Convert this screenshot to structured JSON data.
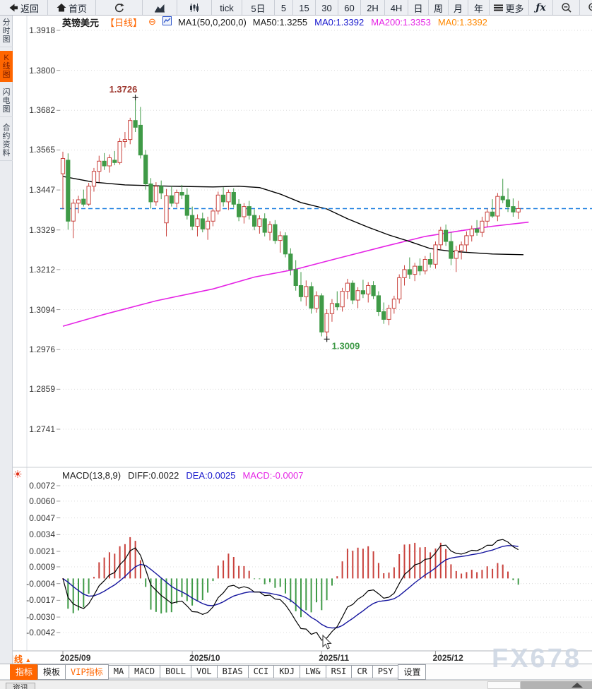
{
  "toolbar": {
    "items": [
      {
        "icon": "back-icon",
        "label": "返回"
      },
      {
        "icon": "home-icon",
        "label": "首页"
      },
      {
        "icon": "refresh-icon",
        "label": ""
      },
      {
        "icon": "area-chart-icon",
        "label": ""
      },
      {
        "icon": "candle-chart-icon",
        "label": ""
      },
      {
        "icon": "",
        "label": "tick"
      },
      {
        "icon": "",
        "label": "5日"
      },
      {
        "icon": "",
        "label": "5"
      },
      {
        "icon": "",
        "label": "15"
      },
      {
        "icon": "",
        "label": "30"
      },
      {
        "icon": "",
        "label": "60"
      },
      {
        "icon": "",
        "label": "2H"
      },
      {
        "icon": "",
        "label": "4H"
      },
      {
        "icon": "",
        "label": "日"
      },
      {
        "icon": "",
        "label": "周"
      },
      {
        "icon": "",
        "label": "月"
      },
      {
        "icon": "",
        "label": "年"
      },
      {
        "icon": "menu-icon",
        "label": "更多"
      },
      {
        "icon": "fx-icon",
        "label": ""
      },
      {
        "icon": "zoom-out-icon",
        "label": ""
      },
      {
        "icon": "zoom-in-icon",
        "label": ""
      }
    ]
  },
  "sidebar": {
    "tabs": [
      {
        "label": "分时图",
        "active": false
      },
      {
        "label": "K线图",
        "active": true
      },
      {
        "label": "闪电图",
        "active": false
      },
      {
        "label": "合约资料",
        "active": false
      }
    ]
  },
  "chart_header": {
    "symbol": "英镑美元",
    "period": "【日线】",
    "collapse_glyph": "⊖",
    "ma_settings": "MA1(50,0,200,0)",
    "ma_values": [
      {
        "text": "MA50:1.3255",
        "color": "#1b1b1b"
      },
      {
        "text": "MA0:1.3392",
        "color": "#1515cc"
      },
      {
        "text": "MA200:1.3353",
        "color": "#e524e5"
      },
      {
        "text": "MA0:1.3392",
        "color": "#ff8800"
      }
    ]
  },
  "macd_header": {
    "params": "MACD(13,8,9)",
    "values": [
      {
        "text": "DIFF:0.0022",
        "color": "#1b1b1b"
      },
      {
        "text": "DEA:0.0025",
        "color": "#1515cc"
      },
      {
        "text": "MACD:-0.0007",
        "color": "#e524e5"
      }
    ]
  },
  "bottom": {
    "period_label": "日线",
    "period_arrow": "▲",
    "indicator_tabs": [
      {
        "label": "指标",
        "state": "active"
      },
      {
        "label": "模板",
        "state": ""
      },
      {
        "label": "VIP指标",
        "state": "vip"
      },
      {
        "label": "MA",
        "state": ""
      },
      {
        "label": "MACD",
        "state": ""
      },
      {
        "label": "BOLL",
        "state": ""
      },
      {
        "label": "VOL",
        "state": ""
      },
      {
        "label": "BIAS",
        "state": ""
      },
      {
        "label": "CCI",
        "state": ""
      },
      {
        "label": "KDJ",
        "state": ""
      },
      {
        "label": "LW&",
        "state": ""
      },
      {
        "label": "RSI",
        "state": ""
      },
      {
        "label": "CR",
        "state": ""
      },
      {
        "label": "PSY",
        "state": ""
      },
      {
        "label": "设置",
        "state": ""
      }
    ],
    "news_tab": "资讯"
  },
  "watermark": "FX678",
  "chart_data": [
    {
      "type": "candlestick",
      "title": "英镑美元 日线",
      "y_axis_ticks": [
        "1.3918",
        "1.3800",
        "1.3682",
        "1.3565",
        "1.3447",
        "1.3329",
        "1.3212",
        "1.3094",
        "1.2976",
        "1.2859",
        "1.2741"
      ],
      "x_axis_labels": [
        {
          "text": "2025/09",
          "index": 0
        },
        {
          "text": "2025/10",
          "index": 25
        },
        {
          "text": "2025/11",
          "index": 50
        },
        {
          "text": "2025/12",
          "index": 72
        }
      ],
      "current_price": 1.3392,
      "annotations": {
        "high": {
          "text": "1.3726",
          "index": 14,
          "price": 1.3726
        },
        "low": {
          "text": "1.3009",
          "index": 51,
          "price": 1.3009
        }
      },
      "ohlc": [
        [
          1.3495,
          1.356,
          1.339,
          1.354
        ],
        [
          1.3535,
          1.3555,
          1.333,
          1.3355
        ],
        [
          1.3355,
          1.342,
          1.3305,
          1.3408
        ],
        [
          1.3408,
          1.343,
          1.3378,
          1.3418
        ],
        [
          1.342,
          1.3448,
          1.3398,
          1.3405
        ],
        [
          1.3405,
          1.3468,
          1.34,
          1.3458
        ],
        [
          1.3458,
          1.3512,
          1.3442,
          1.3502
        ],
        [
          1.3502,
          1.3548,
          1.347,
          1.3532
        ],
        [
          1.3532,
          1.3556,
          1.3506,
          1.3518
        ],
        [
          1.3518,
          1.3552,
          1.3498,
          1.3542
        ],
        [
          1.3535,
          1.3562,
          1.352,
          1.3528
        ],
        [
          1.3528,
          1.36,
          1.3522,
          1.359
        ],
        [
          1.359,
          1.3618,
          1.3572,
          1.3596
        ],
        [
          1.3596,
          1.366,
          1.3582,
          1.3652
        ],
        [
          1.3652,
          1.3726,
          1.3618,
          1.3632
        ],
        [
          1.3638,
          1.3692,
          1.354,
          1.355
        ],
        [
          1.355,
          1.3565,
          1.3448,
          1.3465
        ],
        [
          1.3465,
          1.3482,
          1.3392,
          1.3412
        ],
        [
          1.3412,
          1.347,
          1.34,
          1.3458
        ],
        [
          1.3458,
          1.3475,
          1.342,
          1.3438
        ],
        [
          1.335,
          1.345,
          1.331,
          1.343
        ],
        [
          1.343,
          1.3458,
          1.3398,
          1.3408
        ],
        [
          1.3408,
          1.3448,
          1.3395,
          1.344
        ],
        [
          1.344,
          1.3462,
          1.342,
          1.3432
        ],
        [
          1.3432,
          1.3452,
          1.336,
          1.3372
        ],
        [
          1.3372,
          1.3398,
          1.3328,
          1.334
        ],
        [
          1.334,
          1.3375,
          1.331,
          1.3362
        ],
        [
          1.3362,
          1.338,
          1.3322,
          1.3332
        ],
        [
          1.3332,
          1.3368,
          1.33,
          1.3355
        ],
        [
          1.3355,
          1.3392,
          1.334,
          1.3385
        ],
        [
          1.3385,
          1.3442,
          1.3375,
          1.3432
        ],
        [
          1.3432,
          1.3455,
          1.3398,
          1.3412
        ],
        [
          1.3412,
          1.3448,
          1.3388,
          1.344
        ],
        [
          1.344,
          1.3452,
          1.3395,
          1.3405
        ],
        [
          1.3405,
          1.342,
          1.3355,
          1.3368
        ],
        [
          1.3368,
          1.3408,
          1.3348,
          1.3398
        ],
        [
          1.3398,
          1.3415,
          1.336,
          1.3372
        ],
        [
          1.3372,
          1.339,
          1.3328,
          1.334
        ],
        [
          1.334,
          1.3372,
          1.3318,
          1.3362
        ],
        [
          1.3362,
          1.3378,
          1.331,
          1.3322
        ],
        [
          1.3322,
          1.3355,
          1.3298,
          1.3345
        ],
        [
          1.3345,
          1.3358,
          1.3288,
          1.3298
        ],
        [
          1.3298,
          1.3325,
          1.3262,
          1.3312
        ],
        [
          1.3312,
          1.3322,
          1.3248,
          1.3258
        ],
        [
          1.3258,
          1.3275,
          1.3195,
          1.3212
        ],
        [
          1.3212,
          1.324,
          1.315,
          1.3165
        ],
        [
          1.3165,
          1.3205,
          1.3118,
          1.3132
        ],
        [
          1.3132,
          1.318,
          1.3105,
          1.3162
        ],
        [
          1.3162,
          1.3175,
          1.3082,
          1.3098
        ],
        [
          1.3098,
          1.3148,
          1.3085,
          1.3135
        ],
        [
          1.3135,
          1.3142,
          1.3015,
          1.3028
        ],
        [
          1.3028,
          1.3095,
          1.3009,
          1.3082
        ],
        [
          1.3082,
          1.3125,
          1.3058,
          1.3112
        ],
        [
          1.3112,
          1.3148,
          1.3092,
          1.3102
        ],
        [
          1.3102,
          1.3158,
          1.3088,
          1.3148
        ],
        [
          1.3148,
          1.3185,
          1.3125,
          1.3172
        ],
        [
          1.3172,
          1.318,
          1.311,
          1.3122
        ],
        [
          1.3122,
          1.316,
          1.3098,
          1.315
        ],
        [
          1.315,
          1.3182,
          1.3128,
          1.314
        ],
        [
          1.314,
          1.3175,
          1.3115,
          1.3165
        ],
        [
          1.3165,
          1.3178,
          1.3125,
          1.3135
        ],
        [
          1.3135,
          1.3148,
          1.3075,
          1.3088
        ],
        [
          1.3088,
          1.3115,
          1.3052,
          1.3065
        ],
        [
          1.3065,
          1.3108,
          1.3048,
          1.3098
        ],
        [
          1.3098,
          1.3135,
          1.3082,
          1.3125
        ],
        [
          1.3125,
          1.3198,
          1.3112,
          1.3188
        ],
        [
          1.3188,
          1.3225,
          1.3165,
          1.3212
        ],
        [
          1.3212,
          1.3248,
          1.3185,
          1.3198
        ],
        [
          1.3198,
          1.3232,
          1.3178,
          1.3222
        ],
        [
          1.3222,
          1.3245,
          1.3195,
          1.3208
        ],
        [
          1.3208,
          1.3252,
          1.3198,
          1.3242
        ],
        [
          1.3242,
          1.3262,
          1.3218,
          1.3228
        ],
        [
          1.3228,
          1.3295,
          1.3215,
          1.3285
        ],
        [
          1.3285,
          1.3338,
          1.3272,
          1.3328
        ],
        [
          1.3328,
          1.3345,
          1.3282,
          1.3295
        ],
        [
          1.3295,
          1.3322,
          1.3225,
          1.3245
        ],
        [
          1.3245,
          1.3282,
          1.3205,
          1.3268
        ],
        [
          1.3268,
          1.3295,
          1.3242,
          1.3285
        ],
        [
          1.3285,
          1.3325,
          1.3265,
          1.3312
        ],
        [
          1.3312,
          1.3342,
          1.3295,
          1.3332
        ],
        [
          1.3332,
          1.3358,
          1.3312,
          1.3322
        ],
        [
          1.3322,
          1.3368,
          1.3308,
          1.3355
        ],
        [
          1.3355,
          1.3392,
          1.3338,
          1.3382
        ],
        [
          1.3382,
          1.342,
          1.3365,
          1.337
        ],
        [
          1.337,
          1.3438,
          1.3355,
          1.3428
        ],
        [
          1.3428,
          1.348,
          1.3408,
          1.3418
        ],
        [
          1.3418,
          1.3452,
          1.3382,
          1.3398
        ],
        [
          1.3398,
          1.3422,
          1.3368,
          1.3382
        ],
        [
          1.3382,
          1.3415,
          1.3362,
          1.3392
        ]
      ],
      "ma50_points": [
        [
          0,
          1.3487
        ],
        [
          6,
          1.347
        ],
        [
          12,
          1.3462
        ],
        [
          21,
          1.3458
        ],
        [
          29,
          1.3456
        ],
        [
          34,
          1.3458
        ],
        [
          38,
          1.3454
        ],
        [
          42,
          1.3435
        ],
        [
          46,
          1.341
        ],
        [
          51,
          1.3391
        ],
        [
          55,
          1.3362
        ],
        [
          59,
          1.3337
        ],
        [
          63,
          1.3314
        ],
        [
          67,
          1.3295
        ],
        [
          71,
          1.3274
        ],
        [
          75,
          1.3266
        ],
        [
          79,
          1.3262
        ],
        [
          83,
          1.3258
        ],
        [
          89,
          1.3256
        ]
      ],
      "ma200_points": [
        [
          0,
          1.3045
        ],
        [
          8,
          1.308
        ],
        [
          18,
          1.312
        ],
        [
          29,
          1.3155
        ],
        [
          37,
          1.319
        ],
        [
          45,
          1.3213
        ],
        [
          53,
          1.3245
        ],
        [
          62,
          1.328
        ],
        [
          70,
          1.331
        ],
        [
          77,
          1.3327
        ],
        [
          83,
          1.334
        ],
        [
          90,
          1.3352
        ]
      ],
      "colors": {
        "up": "#c9413c",
        "down": "#3f9a47",
        "ma50": "#000000",
        "ma200": "#e524e5",
        "price_line": "#1d7fe0",
        "grid": "#dcdcdc",
        "annotation_high": "#9c352c",
        "annotation_low": "#3f9a47"
      }
    },
    {
      "type": "macd-histogram",
      "title": "MACD(13,8,9)",
      "y_axis_ticks": [
        "0.0072",
        "0.0060",
        "0.0047",
        "0.0034",
        "0.0021",
        "0.0009",
        "-0.0004",
        "-0.0017",
        "-0.0030",
        "-0.0042"
      ],
      "params": {
        "short": 8,
        "long": 13,
        "signal": 9,
        "multiplier": 2
      },
      "current": {
        "diff": 0.0022,
        "dea": 0.0025,
        "macd": -0.0007
      },
      "colors": {
        "positive": "#c9413c",
        "negative": "#3f9a47",
        "diff_line": "#000000",
        "dea_line": "#15159e"
      }
    }
  ]
}
